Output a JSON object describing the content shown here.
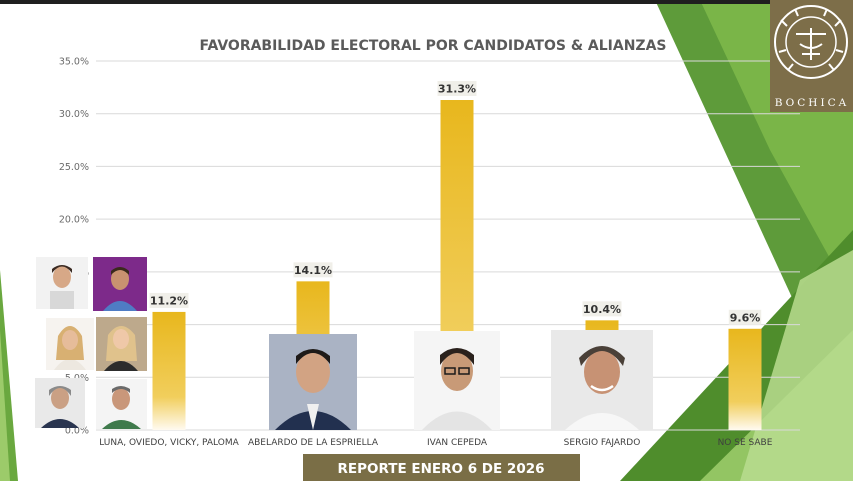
{
  "chart_data": {
    "type": "bar",
    "title": "FAVORABILIDAD ELECTORAL POR CANDIDATOS & ALIANZAS",
    "categories": [
      "LUNA, OVIEDO, VICKY, PALOMA",
      "ABELARDO DE LA ESPRIELLA",
      "IVAN CEPEDA",
      "SERGIO FAJARDO",
      "NO SE SABE"
    ],
    "values": [
      11.2,
      14.1,
      31.3,
      10.4,
      9.6
    ],
    "value_labels": [
      "11.2%",
      "14.1%",
      "31.3%",
      "10.4%",
      "9.6%"
    ],
    "ylim": [
      0,
      35
    ],
    "yticks": [
      0,
      5,
      10,
      15,
      20,
      25,
      30,
      35
    ],
    "ytick_labels": [
      "0.0%",
      "5.0%",
      "10.0%",
      "15.0%",
      "20.0%",
      "25.0%",
      "30.0%",
      "35.0%"
    ],
    "grid": true,
    "bar_color": "#e8b923",
    "xlabel": "",
    "ylabel": ""
  },
  "brand": {
    "name": "BOCHICA",
    "logo_icon": "bochica-seal-icon"
  },
  "banner": {
    "text": "REPORTE ENERO 6 DE 2026",
    "color": "#7a6e46"
  },
  "colors": {
    "green_dark": "#4e8b2f",
    "green_light": "#a8cf72",
    "logo_bg": "#7d6e49"
  }
}
